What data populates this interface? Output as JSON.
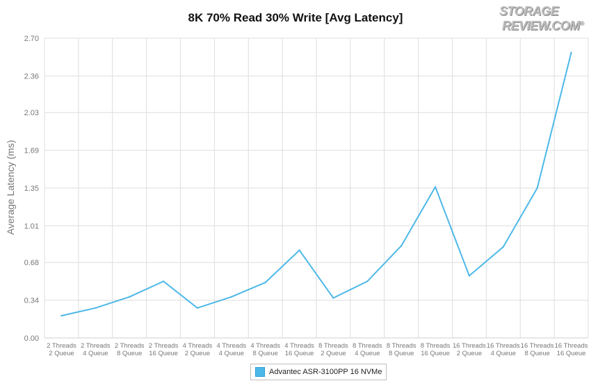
{
  "logo": {
    "line1": "STORAGE",
    "line2": "REVIEW.COM",
    "mark": "®"
  },
  "chart_data": {
    "type": "line",
    "title": "8K 70% Read 30% Write [Avg Latency]",
    "xlabel": "",
    "ylabel": "Average Latency (ms)",
    "ylim": [
      0,
      2.7
    ],
    "yticks": [
      "0.00",
      "0.34",
      "0.68",
      "1.01",
      "1.35",
      "1.69",
      "2.03",
      "2.36",
      "2.70"
    ],
    "grid": true,
    "legend_position": "bottom",
    "categories": [
      [
        "2 Threads",
        "2 Queue"
      ],
      [
        "2 Threads",
        "4 Queue"
      ],
      [
        "2 Threads",
        "8 Queue"
      ],
      [
        "2 Threads",
        "16 Queue"
      ],
      [
        "4 Threads",
        "2 Queue"
      ],
      [
        "4 Threads",
        "4 Queue"
      ],
      [
        "4 Threads",
        "8 Queue"
      ],
      [
        "4 Threads",
        "16 Queue"
      ],
      [
        "8 Threads",
        "2 Queue"
      ],
      [
        "8 Threads",
        "4 Queue"
      ],
      [
        "8 Threads",
        "8 Queue"
      ],
      [
        "8 Threads",
        "16 Queue"
      ],
      [
        "16 Threads",
        "2 Queue"
      ],
      [
        "16 Threads",
        "4 Queue"
      ],
      [
        "16 Threads",
        "8 Queue"
      ],
      [
        "16 Threads",
        "16 Queue"
      ]
    ],
    "series": [
      {
        "name": "Advantec ASR-3100PP 16 NVMe",
        "color": "#4db8e8",
        "values": [
          0.2,
          0.27,
          0.37,
          0.51,
          0.27,
          0.37,
          0.5,
          0.79,
          0.36,
          0.51,
          0.83,
          1.36,
          0.56,
          0.82,
          1.35,
          2.57
        ]
      }
    ]
  }
}
